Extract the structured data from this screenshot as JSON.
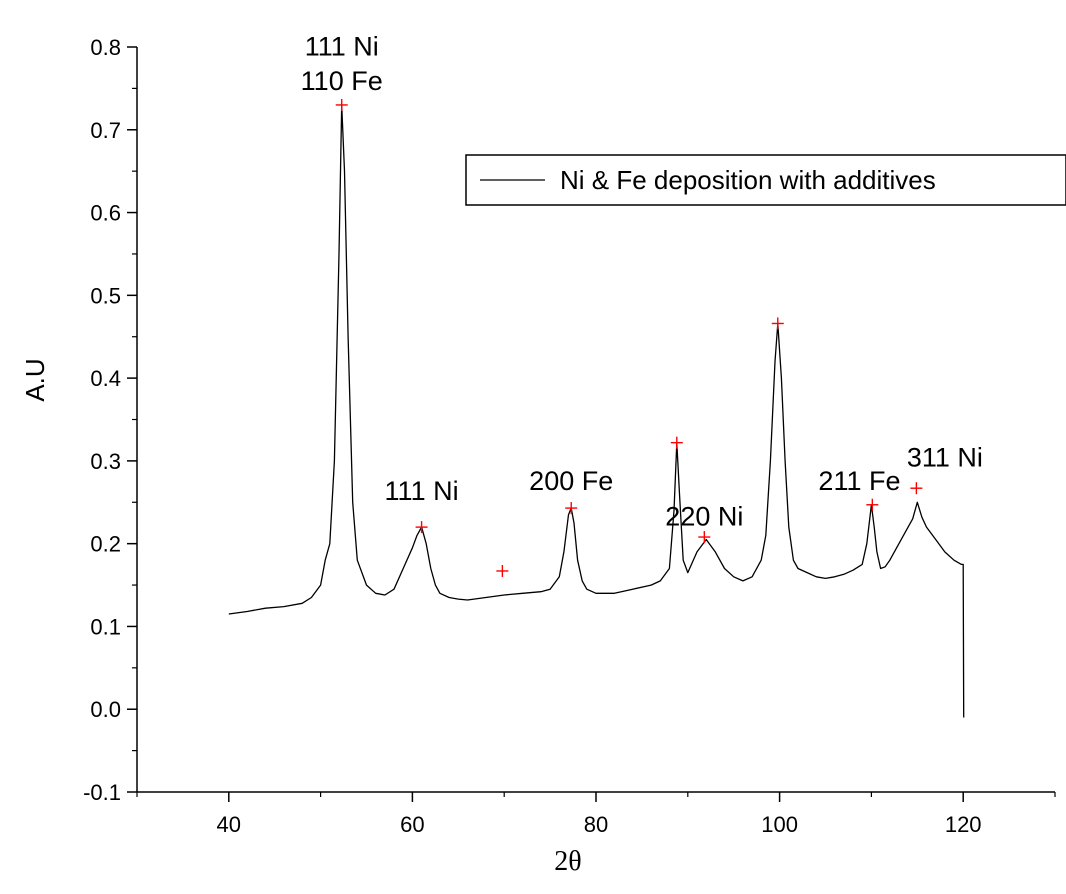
{
  "chart_data": {
    "type": "line",
    "xlabel": "2θ",
    "ylabel": "A.U",
    "xlim": [
      30,
      130
    ],
    "ylim": [
      -0.1,
      0.8
    ],
    "x_ticks": [
      40,
      60,
      80,
      100,
      120
    ],
    "x_tick_labels": [
      "40",
      "60",
      "80",
      "100",
      "120"
    ],
    "y_ticks": [
      -0.1,
      0.0,
      0.1,
      0.2,
      0.3,
      0.4,
      0.5,
      0.6,
      0.7,
      0.8
    ],
    "y_tick_labels": [
      "-0.1",
      "0.0",
      "0.1",
      "0.2",
      "0.3",
      "0.4",
      "0.5",
      "0.6",
      "0.7",
      "0.8"
    ],
    "grid": false,
    "legend_position": "top-right",
    "series": [
      {
        "name": "Ni & Fe deposition with additives",
        "color": "#000000",
        "x": [
          40,
          42,
          44,
          46,
          48,
          49,
          50,
          50.5,
          51,
          51.5,
          52,
          52.3,
          52.6,
          53,
          53.5,
          54,
          55,
          56,
          57,
          58,
          59,
          60,
          60.5,
          61,
          61.5,
          62,
          62.5,
          63,
          64,
          65,
          66,
          68,
          70,
          72,
          74,
          75,
          76,
          76.5,
          77,
          77.3,
          77.6,
          78,
          78.5,
          79,
          80,
          82,
          84,
          86,
          87,
          88,
          88.5,
          88.8,
          89.1,
          89.5,
          90,
          91,
          92,
          93,
          94,
          95,
          96,
          97,
          98,
          98.5,
          99,
          99.5,
          99.8,
          100.2,
          100.6,
          101,
          101.5,
          102,
          103,
          104,
          105,
          106,
          107,
          108,
          109,
          109.5,
          110,
          110.3,
          110.6,
          111,
          111.5,
          112,
          113,
          114,
          114.5,
          115,
          115.5,
          116,
          117,
          118,
          119,
          119.8,
          120,
          120.05
        ],
        "y": [
          0.115,
          0.118,
          0.122,
          0.124,
          0.128,
          0.135,
          0.15,
          0.18,
          0.2,
          0.3,
          0.55,
          0.73,
          0.65,
          0.45,
          0.25,
          0.18,
          0.15,
          0.14,
          0.138,
          0.145,
          0.17,
          0.195,
          0.21,
          0.22,
          0.2,
          0.17,
          0.15,
          0.14,
          0.135,
          0.133,
          0.132,
          0.135,
          0.138,
          0.14,
          0.142,
          0.145,
          0.16,
          0.19,
          0.235,
          0.243,
          0.225,
          0.18,
          0.155,
          0.145,
          0.14,
          0.14,
          0.145,
          0.15,
          0.155,
          0.17,
          0.24,
          0.322,
          0.26,
          0.18,
          0.165,
          0.19,
          0.205,
          0.19,
          0.17,
          0.16,
          0.155,
          0.16,
          0.18,
          0.21,
          0.3,
          0.42,
          0.466,
          0.4,
          0.3,
          0.22,
          0.18,
          0.17,
          0.165,
          0.16,
          0.158,
          0.16,
          0.163,
          0.168,
          0.175,
          0.2,
          0.247,
          0.22,
          0.19,
          0.17,
          0.172,
          0.18,
          0.2,
          0.22,
          0.23,
          0.25,
          0.232,
          0.22,
          0.205,
          0.19,
          0.18,
          0.175,
          0.175,
          -0.01
        ]
      }
    ],
    "peak_markers": [
      {
        "x": 52.3,
        "y": 0.73
      },
      {
        "x": 61,
        "y": 0.22
      },
      {
        "x": 69.8,
        "y": 0.167
      },
      {
        "x": 77.3,
        "y": 0.243
      },
      {
        "x": 88.8,
        "y": 0.322
      },
      {
        "x": 91.8,
        "y": 0.208
      },
      {
        "x": 99.8,
        "y": 0.466
      },
      {
        "x": 110.1,
        "y": 0.247
      },
      {
        "x": 114.9,
        "y": 0.267
      }
    ],
    "marker_color": "#ff0000",
    "annotations": [
      {
        "text": "111 Ni",
        "x": 52.3,
        "y": 0.79
      },
      {
        "text": "110 Fe",
        "x": 52.3,
        "y": 0.748
      },
      {
        "text": "111 Ni",
        "x": 61,
        "y": 0.253
      },
      {
        "text": "200 Fe",
        "x": 77.3,
        "y": 0.265
      },
      {
        "text": "220 Ni",
        "x": 91.8,
        "y": 0.222
      },
      {
        "text": "211 Fe",
        "x": 108.7,
        "y": 0.265
      },
      {
        "text": "311 Ni",
        "x": 118,
        "y": 0.293
      }
    ]
  }
}
